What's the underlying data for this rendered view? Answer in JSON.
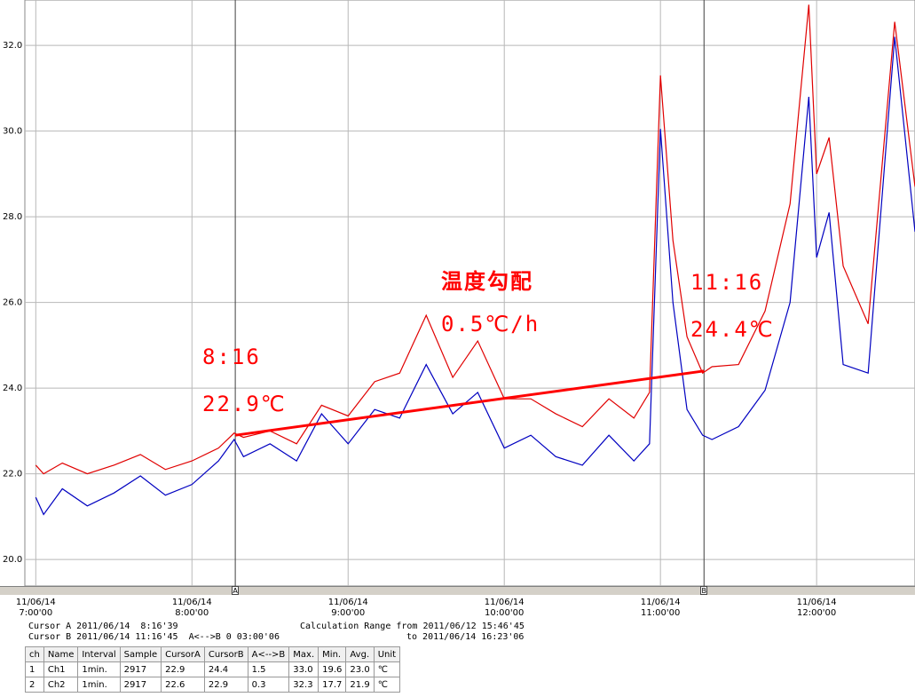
{
  "chart_data": {
    "type": "line",
    "x": [
      7.0,
      7.05,
      7.17,
      7.33,
      7.5,
      7.67,
      7.83,
      8.0,
      8.17,
      8.27,
      8.33,
      8.5,
      8.67,
      8.83,
      9.0,
      9.17,
      9.33,
      9.5,
      9.67,
      9.83,
      10.0,
      10.17,
      10.33,
      10.5,
      10.67,
      10.83,
      10.93,
      11.0,
      11.08,
      11.17,
      11.27,
      11.33,
      11.5,
      11.67,
      11.83,
      11.95,
      12.0,
      12.08,
      12.17,
      12.33,
      12.5,
      12.63
    ],
    "series": [
      {
        "name": "Ch1",
        "color": "#e00000",
        "values": [
          22.2,
          22.0,
          22.25,
          22.0,
          22.2,
          22.45,
          22.1,
          22.3,
          22.6,
          22.95,
          22.85,
          23.0,
          22.7,
          23.6,
          23.35,
          24.15,
          24.35,
          25.7,
          24.25,
          25.1,
          23.75,
          23.75,
          23.4,
          23.1,
          23.75,
          23.3,
          23.9,
          31.3,
          27.45,
          25.2,
          24.35,
          24.5,
          24.55,
          25.8,
          28.3,
          32.95,
          29.0,
          29.85,
          26.85,
          25.5,
          32.55,
          28.7
        ]
      },
      {
        "name": "Ch2",
        "color": "#0000c0",
        "values": [
          21.45,
          21.05,
          21.65,
          21.25,
          21.55,
          21.95,
          21.5,
          21.75,
          22.3,
          22.8,
          22.4,
          22.7,
          22.3,
          23.4,
          22.7,
          23.5,
          23.3,
          24.55,
          23.4,
          23.9,
          22.6,
          22.9,
          22.4,
          22.2,
          22.9,
          22.3,
          22.7,
          30.05,
          26.0,
          23.5,
          22.9,
          22.8,
          23.1,
          23.95,
          26.0,
          30.8,
          27.05,
          28.1,
          24.55,
          24.35,
          32.2,
          27.65
        ]
      }
    ],
    "xlim": [
      6.93,
      12.63
    ],
    "xticks": [
      {
        "value": 7,
        "label": "11/06/14\n7:00'00"
      },
      {
        "value": 8,
        "label": "11/06/14\n8:00'00"
      },
      {
        "value": 9,
        "label": "11/06/14\n9:00'00"
      },
      {
        "value": 10,
        "label": "11/06/14\n10:00'00"
      },
      {
        "value": 11,
        "label": "11/06/14\n11:00'00"
      },
      {
        "value": 12,
        "label": "11/06/14\n12:00'00"
      }
    ],
    "ylim": [
      19.38,
      33.06
    ],
    "yticks": [
      {
        "value": 20,
        "label": "20.0"
      },
      {
        "value": 22,
        "label": "22.0"
      },
      {
        "value": 24,
        "label": "24.0"
      },
      {
        "value": 26,
        "label": "26.0"
      },
      {
        "value": 28,
        "label": "28.0"
      },
      {
        "value": 30,
        "label": "30.0"
      },
      {
        "value": 32,
        "label": "32.0"
      }
    ],
    "grid": true,
    "cursors": [
      {
        "label": "A",
        "x": 8.2775
      },
      {
        "label": "B",
        "x": 11.279
      }
    ],
    "trend_line": {
      "color": "#ff0000",
      "x": [
        8.2775,
        11.279
      ],
      "values": [
        22.9,
        24.4
      ]
    },
    "annotations": [
      "8:16",
      "22.9℃",
      "温度勾配",
      "0.5℃/h",
      "11:16",
      "24.4℃"
    ]
  },
  "cursor_info": [
    "Cursor A 2011/06/14  8:16'39",
    "Cursor B 2011/06/14 11:16'45  A<-->B 0 03:00'06",
    "Calculation Range from 2011/06/12 15:46'45",
    "to 2011/06/14 16:23'06"
  ],
  "table": {
    "columns": [
      "ch",
      "Name",
      "Interval",
      "Sample",
      "CursorA",
      "CursorB",
      "A<-->B",
      "Max.",
      "Min.",
      "Avg.",
      "Unit"
    ],
    "rows": [
      [
        "1",
        "Ch1",
        "1min.",
        "2917",
        "22.9",
        "24.4",
        "1.5",
        "33.0",
        "19.6",
        "23.0",
        "℃"
      ],
      [
        "2",
        "Ch2",
        "1min.",
        "2917",
        "22.6",
        "22.9",
        "0.3",
        "32.3",
        "17.7",
        "21.9",
        "℃"
      ]
    ]
  }
}
